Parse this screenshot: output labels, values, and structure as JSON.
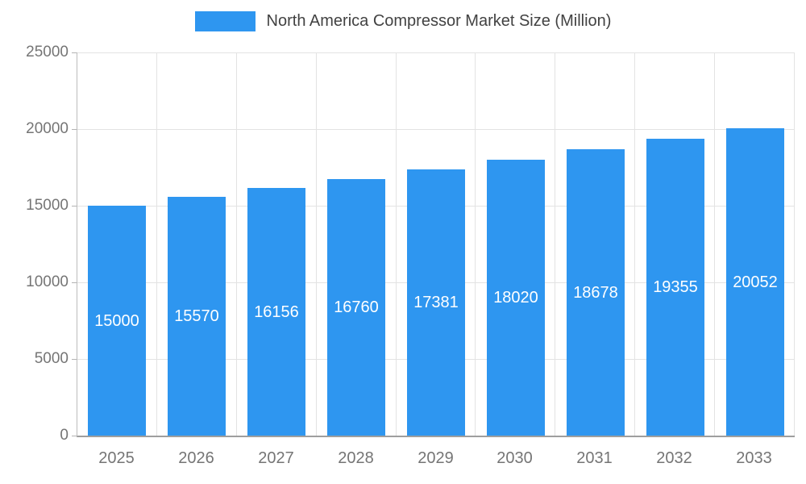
{
  "chart_data": {
    "type": "bar",
    "title": "North America Compressor Market Size (Million)",
    "categories": [
      "2025",
      "2026",
      "2027",
      "2028",
      "2029",
      "2030",
      "2031",
      "2032",
      "2033"
    ],
    "values": [
      15000,
      15570,
      16156,
      16760,
      17381,
      18020,
      18678,
      19355,
      20052
    ],
    "xlabel": "",
    "ylabel": "",
    "ylim": [
      0,
      25000
    ],
    "yticks": [
      0,
      5000,
      10000,
      15000,
      20000,
      25000
    ],
    "grid": true,
    "legend_position": "top",
    "value_labels": "inside-middle",
    "colors": {
      "bar": "#2e96f0",
      "bar_label_text": "#ffffff",
      "axis_text": "#757575",
      "legend_text": "#424242",
      "gridline": "#e3e3e3",
      "axis_line": "#9e9e9e"
    }
  }
}
